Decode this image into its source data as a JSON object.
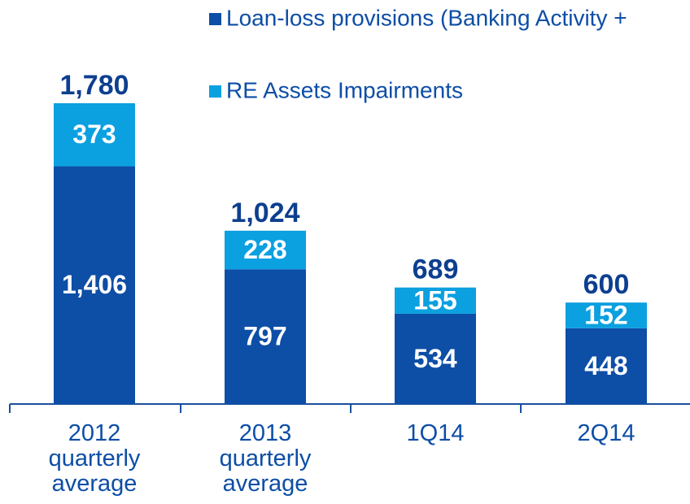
{
  "chart_data": {
    "type": "stacked_bar",
    "categories": [
      "2012 quarterly average",
      "2013 quarterly average",
      "1Q14",
      "2Q14"
    ],
    "series": [
      {
        "name": "Loan-loss provisions (Banking Activity +",
        "color": "#0d4ea6",
        "values": [
          1406,
          797,
          534,
          448
        ],
        "value_labels": [
          "1,406",
          "797",
          "534",
          "448"
        ]
      },
      {
        "name": "RE Assets Impairments",
        "color": "#0ba0e0",
        "values": [
          373,
          228,
          155,
          152
        ]
      }
    ],
    "totals": [
      1780,
      1024,
      689,
      600
    ],
    "total_labels": [
      "1,780",
      "1,024",
      "689",
      "600"
    ]
  }
}
